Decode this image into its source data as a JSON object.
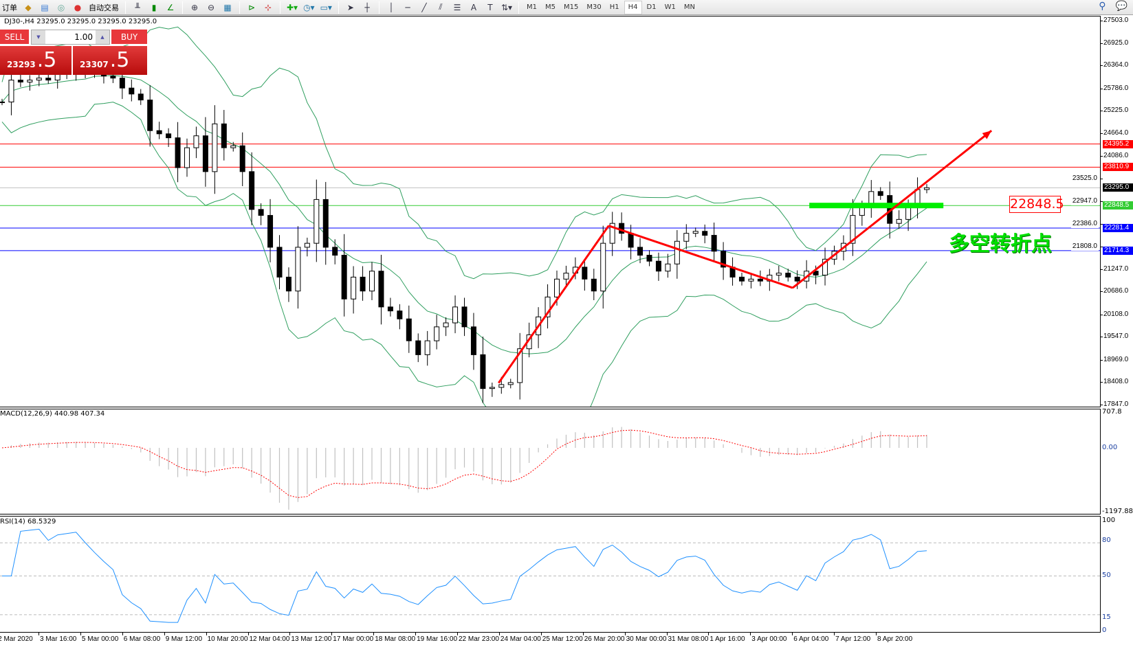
{
  "toolbar": {
    "new_order_label": "订单",
    "auto_trade_label": "自动交易",
    "timeframes": [
      "M1",
      "M5",
      "M15",
      "M30",
      "H1",
      "H4",
      "D1",
      "W1",
      "MN"
    ],
    "active_timeframe": "H4",
    "icons": [
      "new-order-icon",
      "navigator-icon",
      "terminal-icon",
      "signals-icon",
      "auto-trading-icon",
      "bar-chart-icon",
      "candlestick-icon",
      "line-chart-icon",
      "zoom-in-icon",
      "zoom-out-icon",
      "tile-windows-icon",
      "autoscroll-icon",
      "chart-shift-icon",
      "indicators-icon",
      "periods-icon",
      "templates-icon",
      "cursor-icon",
      "crosshair-icon",
      "vertical-line-icon",
      "horizontal-line-icon",
      "trendline-icon",
      "equidistant-channel-icon",
      "fibonacci-icon",
      "text-icon",
      "text-label-icon",
      "arrows-icon",
      "search-icon",
      "chat-icon"
    ]
  },
  "symbol_info": "DJ30-,H4  23295.0 23295.0 23295.0 23295.0",
  "trade_panel": {
    "sell_label": "SELL",
    "buy_label": "BUY",
    "lot": "1.00",
    "sell_price_main": "23293",
    "sell_price_big": ".5",
    "buy_price_main": "23307",
    "buy_price_big": ".5"
  },
  "annotations": {
    "level_box": "22848.5",
    "text": "多空转折点",
    "trend_arrows": [
      {
        "from": {
          "bar": 53.7,
          "price": 18390
        },
        "to": {
          "bar": 65.6,
          "price": 22340
        }
      },
      {
        "from": {
          "bar": 65.6,
          "price": 22340
        },
        "to": {
          "bar": 85.5,
          "price": 20780
        }
      },
      {
        "from": {
          "bar": 85.5,
          "price": 20780
        },
        "to": {
          "bar": 107,
          "price": 24730
        },
        "arrowhead": true
      }
    ],
    "zone": {
      "from_bar": 87.3,
      "to_bar": 101.8,
      "price": 22848.5,
      "color": "#00ee00"
    }
  },
  "colors": {
    "bull": "#ffffff",
    "bear": "#000000",
    "bands": "#2e9e5e",
    "arrow": "#ff0000",
    "macd_hist": "#c0c0c0",
    "macd_signal": "#ff0000",
    "rsi": "#1e90ff"
  },
  "chart_data": {
    "type": "candlestick",
    "symbol": "DJ30-",
    "timeframe": "H4",
    "ylim": [
      17847.0,
      27503.0
    ],
    "price_ticks": [
      "27503.0",
      "26925.0",
      "26364.0",
      "25786.0",
      "25225.0",
      "24664.0",
      "24086.0",
      "23525.0",
      "22947.0",
      "22386.0",
      "21808.0",
      "21247.0",
      "20686.0",
      "20108.0",
      "19547.0",
      "18969.0",
      "18408.0",
      "17847.0"
    ],
    "time_labels": [
      "2 Mar 2020",
      "3 Mar 16:00",
      "5 Mar 00:00",
      "6 Mar 08:00",
      "9 Mar 12:00",
      "10 Mar 20:00",
      "12 Mar 04:00",
      "13 Mar 12:00",
      "17 Mar 00:00",
      "18 Mar 08:00",
      "19 Mar 16:00",
      "22 Mar 23:00",
      "24 Mar 04:00",
      "25 Mar 12:00",
      "26 Mar 20:00",
      "30 Mar 00:00",
      "31 Mar 08:00",
      "1 Apr 16:00",
      "3 Apr 00:00",
      "6 Apr 04:00",
      "7 Apr 12:00",
      "8 Apr 20:00"
    ],
    "closes": [
      25450,
      26000,
      25950,
      26000,
      26050,
      26000,
      26150,
      26200,
      26250,
      26200,
      26150,
      26100,
      26050,
      25800,
      25650,
      25500,
      24730,
      24650,
      24550,
      23800,
      24300,
      24600,
      23700,
      24900,
      24300,
      24350,
      23700,
      22750,
      22600,
      21800,
      21050,
      20700,
      21800,
      21900,
      23000,
      21800,
      21600,
      20500,
      21050,
      20700,
      21200,
      20300,
      20200,
      20000,
      19450,
      19100,
      19450,
      19800,
      19900,
      20300,
      19800,
      19100,
      18250,
      18280,
      18350,
      18400,
      19250,
      19600,
      20050,
      20550,
      21000,
      21150,
      21300,
      21000,
      20700,
      21900,
      22400,
      22150,
      21800,
      21600,
      21450,
      21200,
      21380,
      21950,
      22150,
      22200,
      22100,
      21700,
      21300,
      21050,
      20950,
      21000,
      20950,
      21100,
      21150,
      21050,
      20950,
      21200,
      21100,
      21500,
      21700,
      21900,
      22600,
      22800,
      23200,
      23100,
      22400,
      22500,
      22800,
      23250,
      23295
    ],
    "horizontal_lines": [
      {
        "price": 24395.2,
        "label": "24395.2",
        "color": "#ff0000"
      },
      {
        "price": 23810.9,
        "label": "23810.9",
        "color": "#ff0000"
      },
      {
        "price": 23295.0,
        "label": "23295.0",
        "color": "#000000",
        "line": "#c0c0c0"
      },
      {
        "price": 22848.5,
        "label": "22848.5",
        "color": "#33cc33"
      },
      {
        "price": 22281.4,
        "label": "22281.4",
        "color": "#0000ff"
      },
      {
        "price": 21714.3,
        "label": "21714.3",
        "color": "#0000ff"
      }
    ],
    "indicators": {
      "bollinger": "Bollinger Bands",
      "macd": {
        "title": "MACD(12,26,9) 440.98 407.34",
        "scale": [
          "707.8",
          "0.00",
          "-1197.88"
        ]
      },
      "rsi": {
        "title": "RSI(14) 68.5329",
        "levels": [
          "100",
          "80",
          "50",
          "15",
          "0"
        ]
      }
    }
  }
}
